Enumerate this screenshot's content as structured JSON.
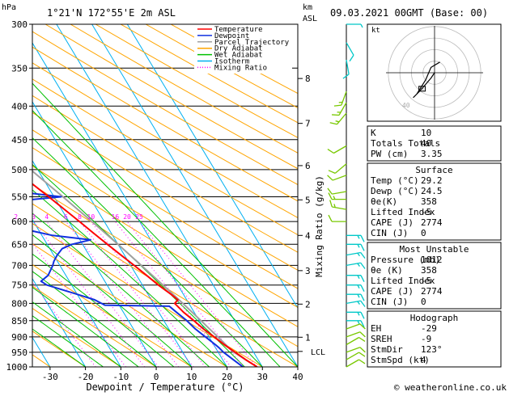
{
  "header": {
    "p_unit": "hPa",
    "location": "1°21'N  172°55'E  2m  ASL",
    "km_label": "km",
    "asl_label": "ASL",
    "datetime": "09.03.2021  00GMT  (Base: 00)",
    "credit": "© weatheronline.co.uk"
  },
  "colors": {
    "temperature": "#ff0000",
    "dewpoint": "#1030e0",
    "parcel": "#a0a0a0",
    "dry_adiabat": "#ffa500",
    "wet_adiabat": "#00c000",
    "isotherm": "#00b0f0",
    "mixing_ratio": "#ff00ff",
    "barb_cyan": "#00c8c8",
    "barb_green": "#78c800"
  },
  "chart_data": {
    "type": "skew-t",
    "xlabel": "Dewpoint / Temperature (°C)",
    "ylabel_right": "Mixing Ratio (g/kg)",
    "xticks": [
      -30,
      -20,
      -10,
      0,
      10,
      20,
      30,
      40
    ],
    "xlim": [
      -35,
      40
    ],
    "pressure_levels": [
      300,
      350,
      400,
      450,
      500,
      550,
      600,
      650,
      700,
      750,
      800,
      850,
      900,
      950,
      1000
    ],
    "plim": [
      300,
      1000
    ],
    "km_ticks": [
      {
        "km": "8",
        "p": 363
      },
      {
        "km": "7",
        "p": 425
      },
      {
        "km": "6",
        "p": 493
      },
      {
        "km": "5",
        "p": 556
      },
      {
        "km": "4",
        "p": 630
      },
      {
        "km": "3",
        "p": 713
      },
      {
        "km": "2",
        "p": 802
      },
      {
        "km": "1",
        "p": 901
      }
    ],
    "lcl": {
      "label": "LCL",
      "p": 947
    },
    "mixing_ratio_values": [
      1,
      2,
      3,
      4,
      6,
      8,
      10,
      16,
      20,
      25
    ],
    "mixing_ratio_labels": [
      "2",
      "3",
      "4",
      "6",
      "8",
      "10",
      "16",
      "20",
      "25"
    ],
    "legend": [
      "Temperature",
      "Dewpoint",
      "Parcel Trajectory",
      "Dry Adiabat",
      "Wet Adiabat",
      "Isotherm",
      "Mixing Ratio"
    ],
    "series": [
      {
        "name": "Temperature",
        "points": [
          [
            1000,
            28.5
          ],
          [
            975,
            26.5
          ],
          [
            950,
            24.8
          ],
          [
            925,
            23.0
          ],
          [
            900,
            21.5
          ],
          [
            875,
            19.8
          ],
          [
            850,
            18.5
          ],
          [
            825,
            17.0
          ],
          [
            800,
            16.0
          ],
          [
            790,
            17.5
          ],
          [
            775,
            16.5
          ],
          [
            750,
            14.5
          ],
          [
            725,
            12.8
          ],
          [
            700,
            11.0
          ],
          [
            675,
            9.0
          ],
          [
            650,
            7.0
          ],
          [
            625,
            5.0
          ],
          [
            600,
            3.0
          ],
          [
            575,
            0.8
          ],
          [
            550,
            -1.5
          ],
          [
            525,
            -4.0
          ],
          [
            500,
            -6.5
          ],
          [
            475,
            -9.5
          ],
          [
            450,
            -12.5
          ],
          [
            425,
            -15.5
          ],
          [
            400,
            -19.0
          ],
          [
            375,
            -23.0
          ],
          [
            350,
            -27.5
          ],
          [
            325,
            -32.0
          ],
          [
            300,
            -37.0
          ]
        ]
      },
      {
        "name": "Dewpoint",
        "points": [
          [
            1000,
            24.5
          ],
          [
            975,
            23.0
          ],
          [
            950,
            21.5
          ],
          [
            935,
            21.0
          ],
          [
            925,
            20.5
          ],
          [
            900,
            19.0
          ],
          [
            875,
            17.5
          ],
          [
            850,
            16.5
          ],
          [
            825,
            15.0
          ],
          [
            808,
            14.0
          ],
          [
            805,
            -4.0
          ],
          [
            790,
            -6.0
          ],
          [
            775,
            -10.0
          ],
          [
            750,
            -17.0
          ],
          [
            740,
            -18.0
          ],
          [
            725,
            -15.0
          ],
          [
            700,
            -12.0
          ],
          [
            690,
            -11.0
          ],
          [
            675,
            -9.0
          ],
          [
            660,
            -6.5
          ],
          [
            650,
            -3.0
          ],
          [
            640,
            3.0
          ],
          [
            630,
            -7.0
          ],
          [
            620,
            -12.0
          ],
          [
            600,
            -14.0
          ],
          [
            585,
            -14.5
          ],
          [
            575,
            -17.0
          ],
          [
            560,
            -14.0
          ],
          [
            550,
            2.0
          ],
          [
            540,
            -10.0
          ],
          [
            520,
            -5.0
          ],
          [
            510,
            -17.0
          ],
          [
            500,
            -19.0
          ],
          [
            480,
            -22.5
          ],
          [
            460,
            -26.0
          ],
          [
            440,
            -27.0
          ],
          [
            425,
            -20.0
          ],
          [
            415,
            -17.0
          ],
          [
            400,
            -22.0
          ],
          [
            380,
            -30.0
          ],
          [
            365,
            -36.0
          ],
          [
            350,
            -40.0
          ],
          [
            330,
            -45.0
          ],
          [
            300,
            -50.0
          ]
        ]
      },
      {
        "name": "Parcel Trajectory",
        "points": [
          [
            1000,
            28.5
          ],
          [
            947,
            24.2
          ],
          [
            900,
            22.5
          ],
          [
            850,
            20.5
          ],
          [
            800,
            18.3
          ],
          [
            750,
            15.8
          ],
          [
            700,
            13.0
          ],
          [
            650,
            10.0
          ],
          [
            600,
            6.5
          ],
          [
            550,
            2.5
          ],
          [
            500,
            -2.0
          ],
          [
            450,
            -7.5
          ],
          [
            400,
            -14.0
          ],
          [
            350,
            -22.0
          ],
          [
            300,
            -31.0
          ]
        ]
      }
    ]
  },
  "hodograph": {
    "label": "kt",
    "ring_labels": [
      "20",
      "40"
    ],
    "points": [
      [
        0,
        0
      ],
      [
        -2,
        -3
      ],
      [
        -8,
        -10
      ],
      [
        -12,
        -14
      ],
      [
        -10,
        -12
      ],
      [
        -5,
        -4
      ],
      [
        -2,
        3
      ],
      [
        3,
        6
      ]
    ],
    "storm_motion": [
      -7,
      -9
    ]
  },
  "info": {
    "rows": [
      {
        "label": "K",
        "value": "10"
      },
      {
        "label": "Totals Totals",
        "value": "40"
      },
      {
        "label": "PW (cm)",
        "value": "3.35"
      }
    ],
    "surface": {
      "title": "Surface",
      "rows": [
        {
          "label": "Temp (°C)",
          "value": "29.2"
        },
        {
          "label": "Dewp (°C)",
          "value": "24.5"
        },
        {
          "label": "θe(K)",
          "value": "358"
        },
        {
          "label": "Lifted Index",
          "value": "-5"
        },
        {
          "label": "CAPE (J)",
          "value": "2774"
        },
        {
          "label": "CIN (J)",
          "value": "0"
        }
      ]
    },
    "unstable": {
      "title": "Most Unstable",
      "rows": [
        {
          "label": "Pressure (mb)",
          "value": "1012"
        },
        {
          "label": "θe (K)",
          "value": "358"
        },
        {
          "label": "Lifted Index",
          "value": "-5"
        },
        {
          "label": "CAPE (J)",
          "value": "2774"
        },
        {
          "label": "CIN (J)",
          "value": "0"
        }
      ]
    },
    "hodograph": {
      "title": "Hodograph",
      "rows": [
        {
          "label": "EH",
          "value": "-29"
        },
        {
          "label": "SREH",
          "value": "-9"
        },
        {
          "label": "StmDir",
          "value": "123°"
        },
        {
          "label": "StmSpd (kt)",
          "value": "4"
        }
      ]
    }
  },
  "wind_barbs": [
    {
      "p": 300,
      "dir": 90,
      "spd": 5,
      "color": "cyan"
    },
    {
      "p": 320,
      "dir": 150,
      "spd": 10,
      "color": "cyan"
    },
    {
      "p": 340,
      "dir": 170,
      "spd": 10,
      "color": "cyan"
    },
    {
      "p": 380,
      "dir": 200,
      "spd": 15,
      "color": "green"
    },
    {
      "p": 395,
      "dir": 210,
      "spd": 15,
      "color": "green"
    },
    {
      "p": 410,
      "dir": 220,
      "spd": 15,
      "color": "green"
    },
    {
      "p": 460,
      "dir": 240,
      "spd": 10,
      "color": "green"
    },
    {
      "p": 490,
      "dir": 230,
      "spd": 10,
      "color": "green"
    },
    {
      "p": 510,
      "dir": 250,
      "spd": 10,
      "color": "green"
    },
    {
      "p": 540,
      "dir": 260,
      "spd": 10,
      "color": "green"
    },
    {
      "p": 555,
      "dir": 270,
      "spd": 15,
      "color": "green"
    },
    {
      "p": 575,
      "dir": 280,
      "spd": 15,
      "color": "green"
    },
    {
      "p": 600,
      "dir": 270,
      "spd": 10,
      "color": "green"
    },
    {
      "p": 630,
      "dir": 90,
      "spd": 15,
      "color": "cyan"
    },
    {
      "p": 650,
      "dir": 90,
      "spd": 15,
      "color": "cyan"
    },
    {
      "p": 675,
      "dir": 80,
      "spd": 15,
      "color": "cyan"
    },
    {
      "p": 700,
      "dir": 80,
      "spd": 15,
      "color": "cyan"
    },
    {
      "p": 725,
      "dir": 90,
      "spd": 15,
      "color": "cyan"
    },
    {
      "p": 750,
      "dir": 90,
      "spd": 15,
      "color": "cyan"
    },
    {
      "p": 775,
      "dir": 90,
      "spd": 15,
      "color": "cyan"
    },
    {
      "p": 800,
      "dir": 80,
      "spd": 15,
      "color": "cyan"
    },
    {
      "p": 825,
      "dir": 90,
      "spd": 15,
      "color": "cyan"
    },
    {
      "p": 850,
      "dir": 90,
      "spd": 15,
      "color": "cyan"
    },
    {
      "p": 875,
      "dir": 70,
      "spd": 10,
      "color": "green"
    },
    {
      "p": 900,
      "dir": 70,
      "spd": 10,
      "color": "green"
    },
    {
      "p": 925,
      "dir": 60,
      "spd": 10,
      "color": "green"
    },
    {
      "p": 950,
      "dir": 70,
      "spd": 10,
      "color": "green"
    },
    {
      "p": 975,
      "dir": 60,
      "spd": 10,
      "color": "green"
    },
    {
      "p": 1000,
      "dir": 60,
      "spd": 10,
      "color": "green"
    }
  ]
}
